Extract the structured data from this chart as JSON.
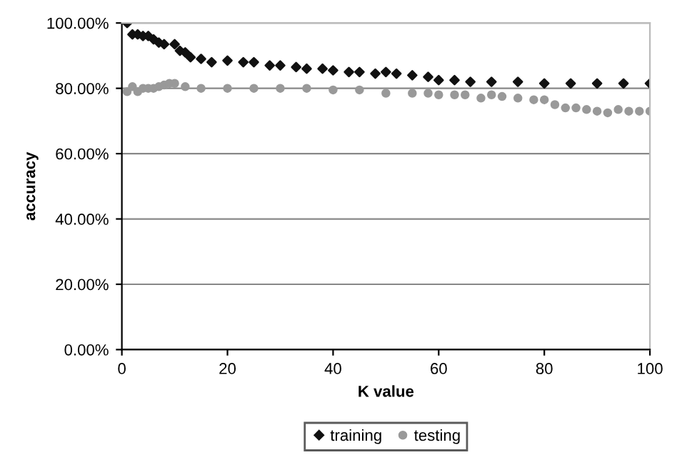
{
  "chart_data": {
    "type": "scatter",
    "xlabel": "K value",
    "ylabel": "accuracy",
    "xlim": [
      0,
      100
    ],
    "xticks": [
      0,
      20,
      40,
      60,
      80,
      100
    ],
    "ylim": [
      0,
      100
    ],
    "yticks": [
      {
        "value": 0,
        "label": "0.00%"
      },
      {
        "value": 20,
        "label": "20.00%"
      },
      {
        "value": 40,
        "label": "40.00%"
      },
      {
        "value": 60,
        "label": "60.00%"
      },
      {
        "value": 80,
        "label": "80.00%"
      },
      {
        "value": 100,
        "label": "100.00%"
      }
    ],
    "grid": "y",
    "legend": "bottom",
    "series": [
      {
        "name": "training",
        "color": "#111111",
        "marker": "diamond",
        "x": [
          1,
          2,
          3,
          4,
          5,
          6,
          7,
          8,
          10,
          11,
          12,
          13,
          15,
          17,
          20,
          23,
          25,
          28,
          30,
          33,
          35,
          38,
          40,
          43,
          45,
          48,
          50,
          52,
          55,
          58,
          60,
          63,
          66,
          70,
          75,
          80,
          85,
          90,
          95,
          100
        ],
        "values": [
          100,
          96.5,
          96.5,
          96,
          96,
          95,
          94,
          93.5,
          93.5,
          91.5,
          91,
          89.5,
          89,
          88,
          88.5,
          88,
          88,
          87,
          87,
          86.5,
          86,
          86,
          85.5,
          85,
          85,
          84.5,
          85,
          84.5,
          84,
          83.5,
          82.5,
          82.5,
          82,
          82,
          82,
          81.5,
          81.5,
          81.5,
          81.5,
          81.5
        ]
      },
      {
        "name": "testing",
        "color": "#999999",
        "marker": "circle",
        "x": [
          1,
          2,
          3,
          4,
          5,
          6,
          7,
          8,
          9,
          10,
          12,
          15,
          20,
          25,
          30,
          35,
          40,
          45,
          50,
          55,
          58,
          60,
          63,
          65,
          68,
          70,
          72,
          75,
          78,
          80,
          82,
          84,
          86,
          88,
          90,
          92,
          94,
          96,
          98,
          100
        ],
        "values": [
          79,
          80.5,
          79,
          80,
          80,
          80,
          80.5,
          81,
          81.5,
          81.5,
          80.5,
          80,
          80,
          80,
          80,
          80,
          79.5,
          79.5,
          78.5,
          78.5,
          78.5,
          78,
          78,
          78,
          77,
          78,
          77.5,
          77,
          76.5,
          76.5,
          75,
          74,
          74,
          73.5,
          73,
          72.5,
          73.5,
          73,
          73,
          73
        ]
      }
    ]
  }
}
